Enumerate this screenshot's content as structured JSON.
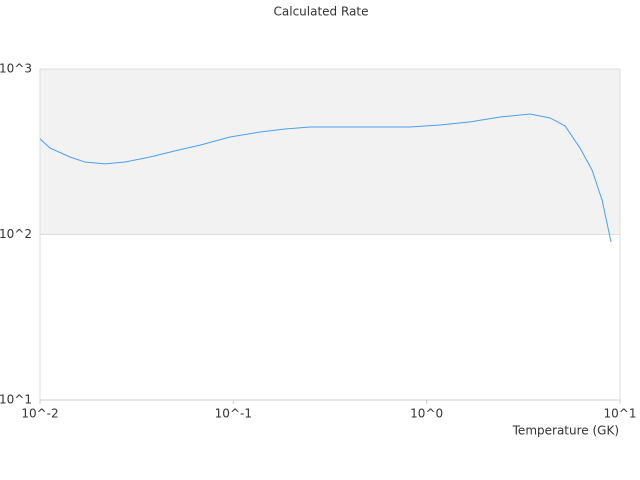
{
  "chart_data": {
    "type": "line",
    "title": "Calculated Rate",
    "x_label": "Temperature (GK)",
    "x": [
      0.01,
      0.01127,
      0.01429,
      0.0171,
      0.0217,
      0.0275,
      0.0371,
      0.0499,
      0.0673,
      0.0962,
      0.1375,
      0.185,
      0.249,
      0.402,
      0.82,
      1.17,
      1.68,
      2.4,
      3.43,
      4.35,
      5.2,
      6.21,
      7.17,
      8.08,
      8.99
    ],
    "values": [
      378,
      333,
      294,
      274,
      267,
      274,
      294,
      320,
      347,
      388,
      416,
      434,
      446,
      446,
      446,
      459,
      479,
      513,
      535,
      506,
      453,
      333,
      245,
      161,
      90
    ],
    "color": "#4a9ff0",
    "xlim": [
      0.01,
      10
    ],
    "ylim": [
      10,
      1000
    ],
    "xticks": [
      {
        "value": 0.01,
        "label": "10^-2"
      },
      {
        "value": 0.1,
        "label": "10^-1"
      },
      {
        "value": 1,
        "label": "10^0"
      },
      {
        "value": 10,
        "label": "10^1"
      }
    ],
    "yticks": [
      {
        "value": 10,
        "label": "10^1"
      },
      {
        "value": 100,
        "label": "10^2"
      },
      {
        "value": 1000,
        "label": "10^3"
      }
    ],
    "x_log": true,
    "y_log": true,
    "grid": true
  }
}
